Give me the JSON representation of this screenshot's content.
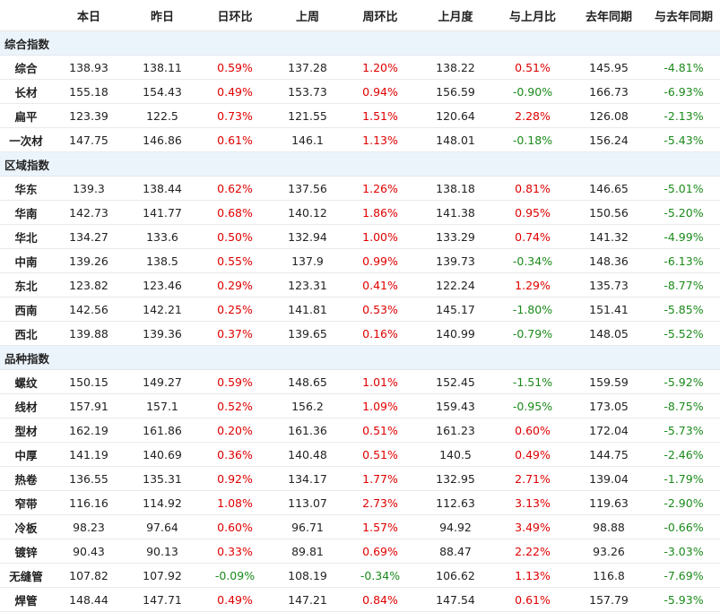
{
  "headers": [
    "",
    "本日",
    "昨日",
    "日环比",
    "上周",
    "周环比",
    "上月度",
    "与上月比",
    "去年同期",
    "与去年同期"
  ],
  "sections": [
    {
      "title": "综合指数",
      "rows": [
        {
          "name": "综合",
          "today": "138.93",
          "yesterday": "138.11",
          "dod": "0.59%",
          "last_week": "137.28",
          "wow": "1.20%",
          "last_month": "138.22",
          "mom": "0.51%",
          "last_year": "145.95",
          "yoy": "-4.81%"
        },
        {
          "name": "长材",
          "today": "155.18",
          "yesterday": "154.43",
          "dod": "0.49%",
          "last_week": "153.73",
          "wow": "0.94%",
          "last_month": "156.59",
          "mom": "-0.90%",
          "last_year": "166.73",
          "yoy": "-6.93%"
        },
        {
          "name": "扁平",
          "today": "123.39",
          "yesterday": "122.5",
          "dod": "0.73%",
          "last_week": "121.55",
          "wow": "1.51%",
          "last_month": "120.64",
          "mom": "2.28%",
          "last_year": "126.08",
          "yoy": "-2.13%"
        },
        {
          "name": "一次材",
          "today": "147.75",
          "yesterday": "146.86",
          "dod": "0.61%",
          "last_week": "146.1",
          "wow": "1.13%",
          "last_month": "148.01",
          "mom": "-0.18%",
          "last_year": "156.24",
          "yoy": "-5.43%"
        }
      ]
    },
    {
      "title": "区域指数",
      "rows": [
        {
          "name": "华东",
          "today": "139.3",
          "yesterday": "138.44",
          "dod": "0.62%",
          "last_week": "137.56",
          "wow": "1.26%",
          "last_month": "138.18",
          "mom": "0.81%",
          "last_year": "146.65",
          "yoy": "-5.01%"
        },
        {
          "name": "华南",
          "today": "142.73",
          "yesterday": "141.77",
          "dod": "0.68%",
          "last_week": "140.12",
          "wow": "1.86%",
          "last_month": "141.38",
          "mom": "0.95%",
          "last_year": "150.56",
          "yoy": "-5.20%"
        },
        {
          "name": "华北",
          "today": "134.27",
          "yesterday": "133.6",
          "dod": "0.50%",
          "last_week": "132.94",
          "wow": "1.00%",
          "last_month": "133.29",
          "mom": "0.74%",
          "last_year": "141.32",
          "yoy": "-4.99%"
        },
        {
          "name": "中南",
          "today": "139.26",
          "yesterday": "138.5",
          "dod": "0.55%",
          "last_week": "137.9",
          "wow": "0.99%",
          "last_month": "139.73",
          "mom": "-0.34%",
          "last_year": "148.36",
          "yoy": "-6.13%"
        },
        {
          "name": "东北",
          "today": "123.82",
          "yesterday": "123.46",
          "dod": "0.29%",
          "last_week": "123.31",
          "wow": "0.41%",
          "last_month": "122.24",
          "mom": "1.29%",
          "last_year": "135.73",
          "yoy": "-8.77%"
        },
        {
          "name": "西南",
          "today": "142.56",
          "yesterday": "142.21",
          "dod": "0.25%",
          "last_week": "141.81",
          "wow": "0.53%",
          "last_month": "145.17",
          "mom": "-1.80%",
          "last_year": "151.41",
          "yoy": "-5.85%"
        },
        {
          "name": "西北",
          "today": "139.88",
          "yesterday": "139.36",
          "dod": "0.37%",
          "last_week": "139.65",
          "wow": "0.16%",
          "last_month": "140.99",
          "mom": "-0.79%",
          "last_year": "148.05",
          "yoy": "-5.52%"
        }
      ]
    },
    {
      "title": "品种指数",
      "rows": [
        {
          "name": "螺纹",
          "today": "150.15",
          "yesterday": "149.27",
          "dod": "0.59%",
          "last_week": "148.65",
          "wow": "1.01%",
          "last_month": "152.45",
          "mom": "-1.51%",
          "last_year": "159.59",
          "yoy": "-5.92%"
        },
        {
          "name": "线材",
          "today": "157.91",
          "yesterday": "157.1",
          "dod": "0.52%",
          "last_week": "156.2",
          "wow": "1.09%",
          "last_month": "159.43",
          "mom": "-0.95%",
          "last_year": "173.05",
          "yoy": "-8.75%"
        },
        {
          "name": "型材",
          "today": "162.19",
          "yesterday": "161.86",
          "dod": "0.20%",
          "last_week": "161.36",
          "wow": "0.51%",
          "last_month": "161.23",
          "mom": "0.60%",
          "last_year": "172.04",
          "yoy": "-5.73%"
        },
        {
          "name": "中厚",
          "today": "141.19",
          "yesterday": "140.69",
          "dod": "0.36%",
          "last_week": "140.48",
          "wow": "0.51%",
          "last_month": "140.5",
          "mom": "0.49%",
          "last_year": "144.75",
          "yoy": "-2.46%"
        },
        {
          "name": "热卷",
          "today": "136.55",
          "yesterday": "135.31",
          "dod": "0.92%",
          "last_week": "134.17",
          "wow": "1.77%",
          "last_month": "132.95",
          "mom": "2.71%",
          "last_year": "139.04",
          "yoy": "-1.79%"
        },
        {
          "name": "窄带",
          "today": "116.16",
          "yesterday": "114.92",
          "dod": "1.08%",
          "last_week": "113.07",
          "wow": "2.73%",
          "last_month": "112.63",
          "mom": "3.13%",
          "last_year": "119.63",
          "yoy": "-2.90%"
        },
        {
          "name": "冷板",
          "today": "98.23",
          "yesterday": "97.64",
          "dod": "0.60%",
          "last_week": "96.71",
          "wow": "1.57%",
          "last_month": "94.92",
          "mom": "3.49%",
          "last_year": "98.88",
          "yoy": "-0.66%"
        },
        {
          "name": "镀锌",
          "today": "90.43",
          "yesterday": "90.13",
          "dod": "0.33%",
          "last_week": "89.81",
          "wow": "0.69%",
          "last_month": "88.47",
          "mom": "2.22%",
          "last_year": "93.26",
          "yoy": "-3.03%"
        },
        {
          "name": "无缝管",
          "today": "107.82",
          "yesterday": "107.92",
          "dod": "-0.09%",
          "last_week": "108.19",
          "wow": "-0.34%",
          "last_month": "106.62",
          "mom": "1.13%",
          "last_year": "116.8",
          "yoy": "-7.69%"
        },
        {
          "name": "焊管",
          "today": "148.44",
          "yesterday": "147.71",
          "dod": "0.49%",
          "last_week": "147.21",
          "wow": "0.84%",
          "last_month": "147.54",
          "mom": "0.61%",
          "last_year": "157.79",
          "yoy": "-5.93%"
        }
      ]
    }
  ],
  "colors": {
    "positive": "#e00000",
    "negative": "#1a8a1a",
    "section_bg": "#ecf4fb"
  }
}
